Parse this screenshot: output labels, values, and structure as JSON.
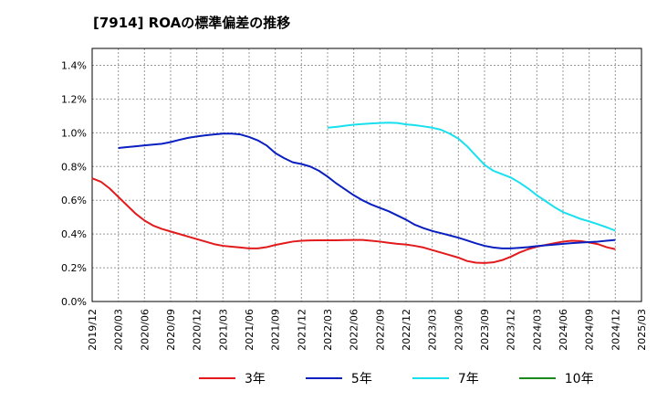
{
  "title": "[7914]  ROAの標準偏差の推移",
  "chart_data": {
    "type": "line",
    "title": "[7914]  ROAの標準偏差の推移",
    "xlabel": "",
    "ylabel": "",
    "x_ticks": [
      "2019/12",
      "2020/03",
      "2020/06",
      "2020/09",
      "2020/12",
      "2021/03",
      "2021/06",
      "2021/09",
      "2021/12",
      "2022/03",
      "2022/06",
      "2022/09",
      "2022/12",
      "2023/03",
      "2023/06",
      "2023/09",
      "2023/12",
      "2024/03",
      "2024/06",
      "2024/09",
      "2024/12",
      "2025/03"
    ],
    "y_ticks": [
      "0.0%",
      "0.2%",
      "0.4%",
      "0.6%",
      "0.8%",
      "1.0%",
      "1.2%",
      "1.4%"
    ],
    "ylim": [
      0,
      1.5
    ],
    "grid": true,
    "legend_position": "bottom",
    "series": [
      {
        "name": "3年",
        "color": "#e31a1c",
        "points": [
          [
            "2019/12",
            0.73
          ],
          [
            "2020/01",
            0.71
          ],
          [
            "2020/02",
            0.67
          ],
          [
            "2020/03",
            0.62
          ],
          [
            "2020/04",
            0.57
          ],
          [
            "2020/05",
            0.52
          ],
          [
            "2020/06",
            0.48
          ],
          [
            "2020/07",
            0.45
          ],
          [
            "2020/08",
            0.43
          ],
          [
            "2020/09",
            0.415
          ],
          [
            "2020/10",
            0.4
          ],
          [
            "2020/11",
            0.385
          ],
          [
            "2020/12",
            0.37
          ],
          [
            "2021/01",
            0.355
          ],
          [
            "2021/02",
            0.34
          ],
          [
            "2021/03",
            0.33
          ],
          [
            "2021/04",
            0.325
          ],
          [
            "2021/05",
            0.32
          ],
          [
            "2021/06",
            0.315
          ],
          [
            "2021/07",
            0.315
          ],
          [
            "2021/08",
            0.322
          ],
          [
            "2021/09",
            0.335
          ],
          [
            "2021/10",
            0.345
          ],
          [
            "2021/11",
            0.355
          ],
          [
            "2021/12",
            0.36
          ],
          [
            "2022/01",
            0.362
          ],
          [
            "2022/02",
            0.363
          ],
          [
            "2022/03",
            0.363
          ],
          [
            "2022/04",
            0.363
          ],
          [
            "2022/05",
            0.364
          ],
          [
            "2022/06",
            0.365
          ],
          [
            "2022/07",
            0.365
          ],
          [
            "2022/08",
            0.36
          ],
          [
            "2022/09",
            0.355
          ],
          [
            "2022/10",
            0.348
          ],
          [
            "2022/11",
            0.342
          ],
          [
            "2022/12",
            0.338
          ],
          [
            "2023/01",
            0.33
          ],
          [
            "2023/02",
            0.32
          ],
          [
            "2023/03",
            0.305
          ],
          [
            "2023/04",
            0.29
          ],
          [
            "2023/05",
            0.275
          ],
          [
            "2023/06",
            0.26
          ],
          [
            "2023/07",
            0.24
          ],
          [
            "2023/08",
            0.23
          ],
          [
            "2023/09",
            0.228
          ],
          [
            "2023/10",
            0.232
          ],
          [
            "2023/11",
            0.245
          ],
          [
            "2023/12",
            0.265
          ],
          [
            "2024/01",
            0.29
          ],
          [
            "2024/02",
            0.31
          ],
          [
            "2024/03",
            0.325
          ],
          [
            "2024/04",
            0.335
          ],
          [
            "2024/05",
            0.345
          ],
          [
            "2024/06",
            0.355
          ],
          [
            "2024/07",
            0.36
          ],
          [
            "2024/08",
            0.358
          ],
          [
            "2024/09",
            0.35
          ],
          [
            "2024/10",
            0.34
          ],
          [
            "2024/11",
            0.322
          ],
          [
            "2024/12",
            0.31
          ]
        ]
      },
      {
        "name": "5年",
        "color": "#0a1fc0",
        "points": [
          [
            "2020/03",
            0.91
          ],
          [
            "2020/04",
            0.915
          ],
          [
            "2020/05",
            0.92
          ],
          [
            "2020/06",
            0.925
          ],
          [
            "2020/07",
            0.93
          ],
          [
            "2020/08",
            0.935
          ],
          [
            "2020/09",
            0.945
          ],
          [
            "2020/10",
            0.958
          ],
          [
            "2020/11",
            0.97
          ],
          [
            "2020/12",
            0.978
          ],
          [
            "2021/01",
            0.985
          ],
          [
            "2021/02",
            0.99
          ],
          [
            "2021/03",
            0.995
          ],
          [
            "2021/04",
            0.995
          ],
          [
            "2021/05",
            0.99
          ],
          [
            "2021/06",
            0.975
          ],
          [
            "2021/07",
            0.955
          ],
          [
            "2021/08",
            0.925
          ],
          [
            "2021/09",
            0.88
          ],
          [
            "2021/10",
            0.85
          ],
          [
            "2021/11",
            0.825
          ],
          [
            "2021/12",
            0.815
          ],
          [
            "2022/01",
            0.8
          ],
          [
            "2022/02",
            0.775
          ],
          [
            "2022/03",
            0.74
          ],
          [
            "2022/04",
            0.7
          ],
          [
            "2022/05",
            0.665
          ],
          [
            "2022/06",
            0.63
          ],
          [
            "2022/07",
            0.6
          ],
          [
            "2022/08",
            0.575
          ],
          [
            "2022/09",
            0.555
          ],
          [
            "2022/10",
            0.535
          ],
          [
            "2022/11",
            0.51
          ],
          [
            "2022/12",
            0.485
          ],
          [
            "2023/01",
            0.455
          ],
          [
            "2023/02",
            0.435
          ],
          [
            "2023/03",
            0.418
          ],
          [
            "2023/04",
            0.405
          ],
          [
            "2023/05",
            0.392
          ],
          [
            "2023/06",
            0.378
          ],
          [
            "2023/07",
            0.362
          ],
          [
            "2023/08",
            0.345
          ],
          [
            "2023/09",
            0.33
          ],
          [
            "2023/10",
            0.32
          ],
          [
            "2023/11",
            0.315
          ],
          [
            "2023/12",
            0.315
          ],
          [
            "2024/01",
            0.318
          ],
          [
            "2024/02",
            0.322
          ],
          [
            "2024/03",
            0.328
          ],
          [
            "2024/04",
            0.333
          ],
          [
            "2024/05",
            0.337
          ],
          [
            "2024/06",
            0.342
          ],
          [
            "2024/07",
            0.346
          ],
          [
            "2024/08",
            0.349
          ],
          [
            "2024/09",
            0.352
          ],
          [
            "2024/10",
            0.355
          ],
          [
            "2024/11",
            0.36
          ],
          [
            "2024/12",
            0.365
          ]
        ]
      },
      {
        "name": "7年",
        "color": "#19e0ee",
        "points": [
          [
            "2022/03",
            1.03
          ],
          [
            "2022/04",
            1.035
          ],
          [
            "2022/05",
            1.042
          ],
          [
            "2022/06",
            1.048
          ],
          [
            "2022/07",
            1.052
          ],
          [
            "2022/08",
            1.055
          ],
          [
            "2022/09",
            1.058
          ],
          [
            "2022/10",
            1.06
          ],
          [
            "2022/11",
            1.058
          ],
          [
            "2022/12",
            1.05
          ],
          [
            "2023/01",
            1.045
          ],
          [
            "2023/02",
            1.038
          ],
          [
            "2023/03",
            1.03
          ],
          [
            "2023/04",
            1.018
          ],
          [
            "2023/05",
            0.995
          ],
          [
            "2023/06",
            0.965
          ],
          [
            "2023/07",
            0.92
          ],
          [
            "2023/08",
            0.865
          ],
          [
            "2023/09",
            0.81
          ],
          [
            "2023/10",
            0.775
          ],
          [
            "2023/11",
            0.755
          ],
          [
            "2023/12",
            0.735
          ],
          [
            "2024/01",
            0.705
          ],
          [
            "2024/02",
            0.67
          ],
          [
            "2024/03",
            0.63
          ],
          [
            "2024/04",
            0.595
          ],
          [
            "2024/05",
            0.56
          ],
          [
            "2024/06",
            0.53
          ],
          [
            "2024/07",
            0.51
          ],
          [
            "2024/08",
            0.49
          ],
          [
            "2024/09",
            0.475
          ],
          [
            "2024/10",
            0.458
          ],
          [
            "2024/11",
            0.44
          ],
          [
            "2024/12",
            0.42
          ]
        ]
      },
      {
        "name": "10年",
        "color": "#1a8a1a",
        "points": []
      }
    ]
  }
}
